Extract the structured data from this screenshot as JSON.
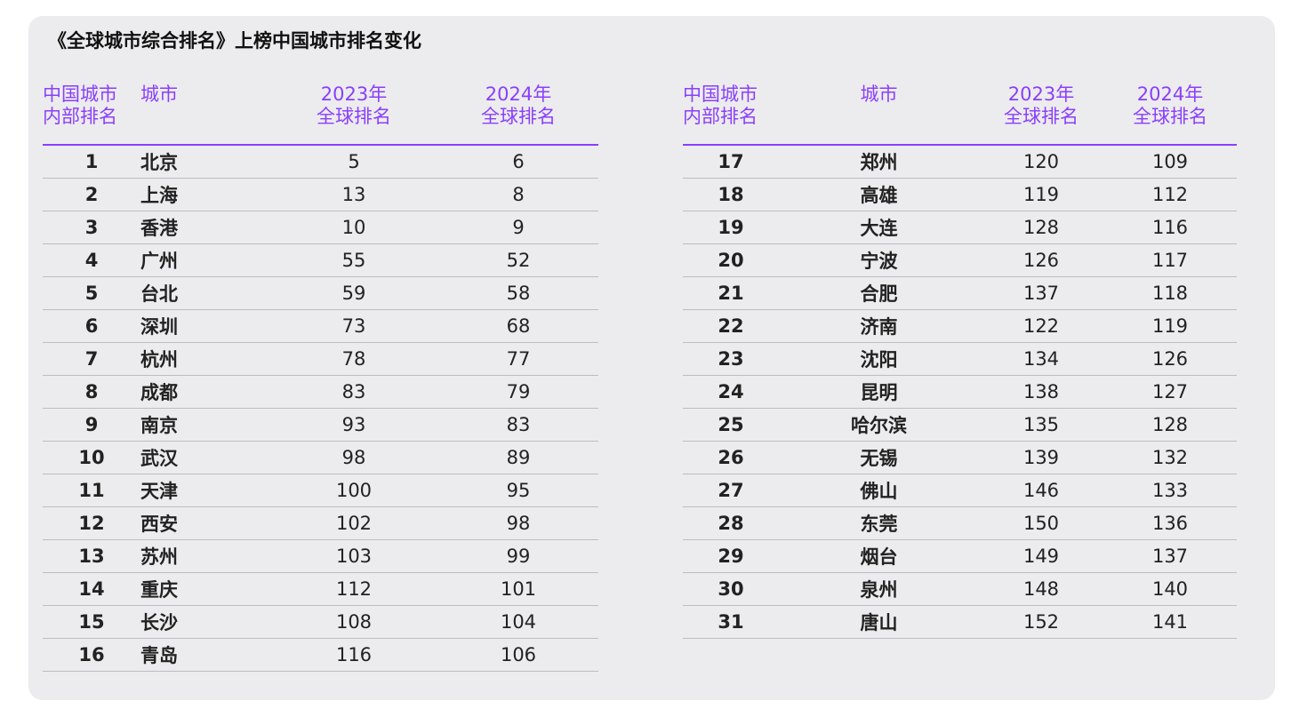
{
  "chart_data": {
    "type": "table",
    "title": "《全球城市综合排名》上榜中国城市排名变化",
    "columns": [
      "中国城市\n内部排名",
      "城市",
      "2023年\n全球排名",
      "2024年\n全球排名"
    ],
    "rows": [
      [
        "1",
        "北京",
        "5",
        "6"
      ],
      [
        "2",
        "上海",
        "13",
        "8"
      ],
      [
        "3",
        "香港",
        "10",
        "9"
      ],
      [
        "4",
        "广州",
        "55",
        "52"
      ],
      [
        "5",
        "台北",
        "59",
        "58"
      ],
      [
        "6",
        "深圳",
        "73",
        "68"
      ],
      [
        "7",
        "杭州",
        "78",
        "77"
      ],
      [
        "8",
        "成都",
        "83",
        "79"
      ],
      [
        "9",
        "南京",
        "93",
        "83"
      ],
      [
        "10",
        "武汉",
        "98",
        "89"
      ],
      [
        "11",
        "天津",
        "100",
        "95"
      ],
      [
        "12",
        "西安",
        "102",
        "98"
      ],
      [
        "13",
        "苏州",
        "103",
        "99"
      ],
      [
        "14",
        "重庆",
        "112",
        "101"
      ],
      [
        "15",
        "长沙",
        "108",
        "104"
      ],
      [
        "16",
        "青岛",
        "116",
        "106"
      ],
      [
        "17",
        "郑州",
        "120",
        "109"
      ],
      [
        "18",
        "高雄",
        "119",
        "112"
      ],
      [
        "19",
        "大连",
        "128",
        "116"
      ],
      [
        "20",
        "宁波",
        "126",
        "117"
      ],
      [
        "21",
        "合肥",
        "137",
        "118"
      ],
      [
        "22",
        "济南",
        "122",
        "119"
      ],
      [
        "23",
        "沈阳",
        "134",
        "126"
      ],
      [
        "24",
        "昆明",
        "138",
        "127"
      ],
      [
        "25",
        "哈尔滨",
        "135",
        "128"
      ],
      [
        "26",
        "无锡",
        "139",
        "132"
      ],
      [
        "27",
        "佛山",
        "146",
        "133"
      ],
      [
        "28",
        "东莞",
        "150",
        "136"
      ],
      [
        "29",
        "烟台",
        "149",
        "137"
      ],
      [
        "30",
        "泉州",
        "148",
        "140"
      ],
      [
        "31",
        "唐山",
        "152",
        "141"
      ]
    ]
  },
  "colors": {
    "accent": "#8a3ffc",
    "card_background": "#ececee",
    "divider": "#bdbdc2"
  }
}
